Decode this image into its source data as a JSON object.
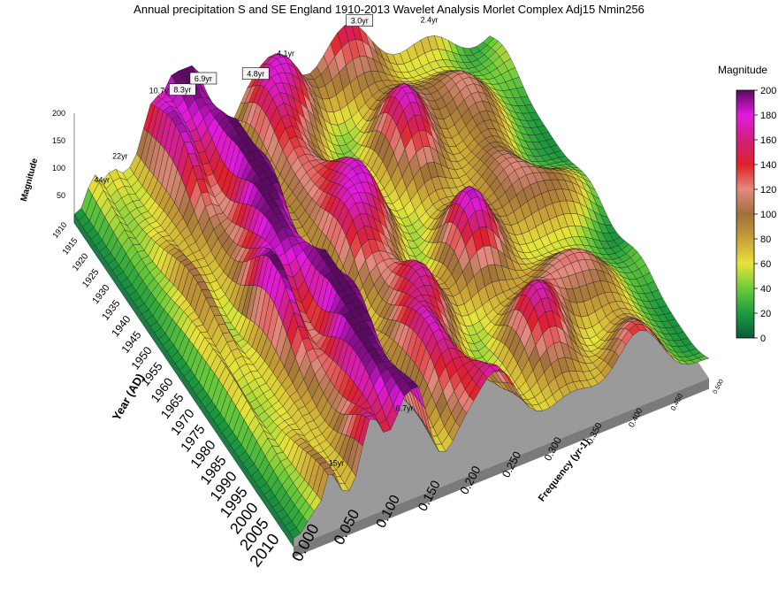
{
  "chart_data": {
    "type": "surface",
    "title": "Annual precipitation S and SE England 1910-2013 Wavelet Analysis Morlet Complex Adj15 Nmin256",
    "axes": {
      "year": {
        "label": "Year (AD)",
        "range": [
          1910,
          2013
        ],
        "ticks": [
          "1910",
          "1915",
          "1920",
          "1925",
          "1930",
          "1935",
          "1940",
          "1945",
          "1950",
          "1955",
          "1960",
          "1965",
          "1970",
          "1975",
          "1980",
          "1985",
          "1990",
          "1995",
          "2000",
          "2005",
          "2010"
        ]
      },
      "frequency": {
        "label": "Frequency (yr-1)",
        "range": [
          0.0,
          0.5
        ],
        "ticks": [
          "0.000",
          "0.050",
          "0.100",
          "0.150",
          "0.200",
          "0.250",
          "0.300",
          "0.350",
          "0.400",
          "0.450",
          "0.500"
        ]
      },
      "magnitude": {
        "label": "Magnitude",
        "range": [
          0,
          200
        ],
        "ticks": [
          "200",
          "150",
          "100",
          "50"
        ]
      }
    },
    "colorbar": {
      "title": "Magnitude",
      "range": [
        0,
        200
      ],
      "ticks": [
        "0",
        "20",
        "40",
        "60",
        "80",
        "100",
        "120",
        "140",
        "160",
        "180",
        "200"
      ],
      "colors": [
        "#0a5c3a",
        "#1e9a3e",
        "#6ccb3c",
        "#e6e33a",
        "#c8a038",
        "#a0703a",
        "#e38a80",
        "#e0202a",
        "#d0207a",
        "#e21ae0",
        "#5a0a60"
      ]
    },
    "peaks": [
      {
        "label": "44yr",
        "frequency": 0.023,
        "magnitude": 70
      },
      {
        "label": "22yr",
        "frequency": 0.045,
        "magnitude": 100
      },
      {
        "label": "15yr",
        "frequency": 0.067,
        "magnitude": 60
      },
      {
        "label": "10.7yr",
        "frequency": 0.093,
        "magnitude": 190
      },
      {
        "label": "8.3yr",
        "frequency": 0.12,
        "magnitude": 175
      },
      {
        "label": "6.9yr",
        "frequency": 0.145,
        "magnitude": 180
      },
      {
        "label": "6.7yr",
        "frequency": 0.149,
        "magnitude": 110
      },
      {
        "label": "4.8yr",
        "frequency": 0.208,
        "magnitude": 150
      },
      {
        "label": "4.1yr",
        "frequency": 0.244,
        "magnitude": 165
      },
      {
        "label": "3.0yr",
        "frequency": 0.333,
        "magnitude": 170
      },
      {
        "label": "2.4yr",
        "frequency": 0.417,
        "magnitude": 120
      }
    ]
  }
}
